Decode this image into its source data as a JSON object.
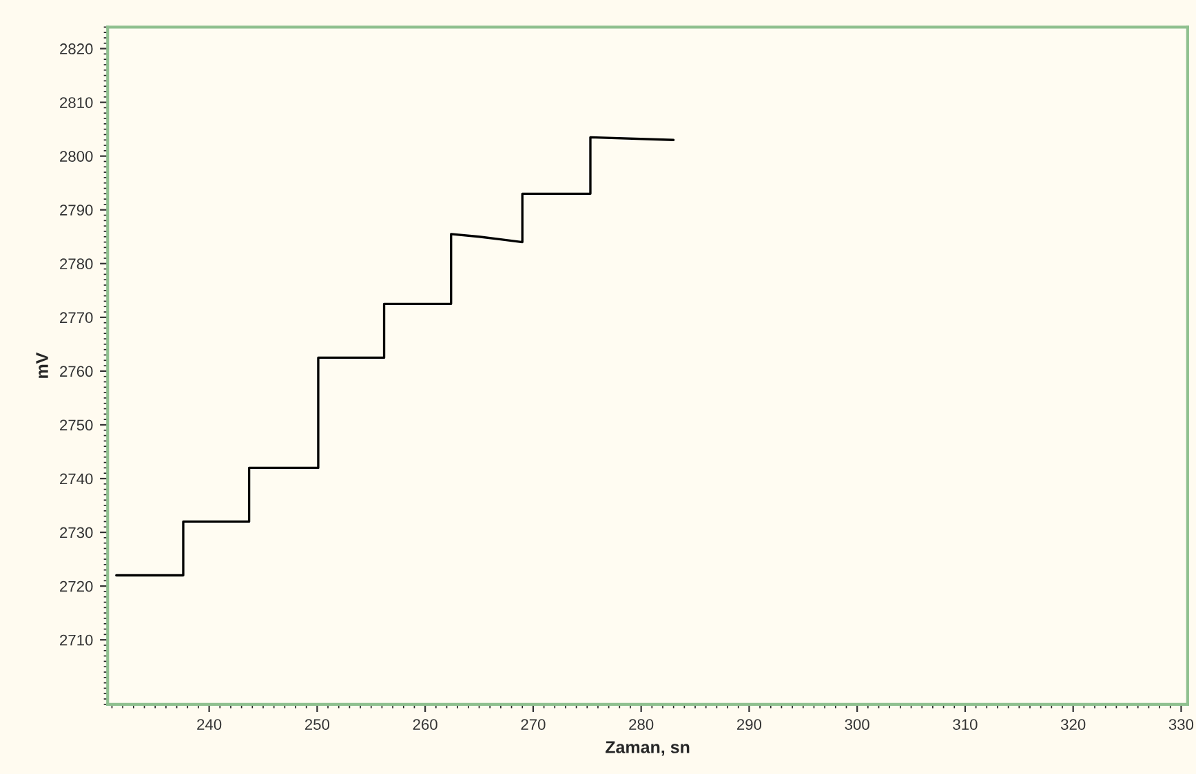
{
  "chart_data": {
    "type": "line",
    "xlabel": "Zaman, sn",
    "ylabel": "mV",
    "series": [
      {
        "color": "#000000",
        "x": [
          231.4,
          237.6,
          237.6,
          243.7,
          243.7,
          250.1,
          250.1,
          256.2,
          256.2,
          262.4,
          262.4,
          265,
          267,
          269.0,
          269.0,
          275.3,
          275.3,
          283.0
        ],
        "values": [
          2722,
          2722,
          2732,
          2732,
          2742,
          2742,
          2762.5,
          2762.5,
          2772.5,
          2772.5,
          2785.5,
          2785,
          2784.5,
          2784,
          2793,
          2793,
          2803.5,
          2803
        ]
      }
    ],
    "xlim": [
      230.6,
      330.6
    ],
    "ylim": [
      2698,
      2824
    ],
    "xticks": [
      240,
      250,
      260,
      270,
      280,
      290,
      300,
      310,
      320,
      330
    ],
    "yticks": [
      2710,
      2720,
      2730,
      2740,
      2750,
      2760,
      2770,
      2780,
      2790,
      2800,
      2810,
      2820
    ],
    "grid": false,
    "legend": false,
    "marker": "none",
    "line_style": "solid"
  }
}
